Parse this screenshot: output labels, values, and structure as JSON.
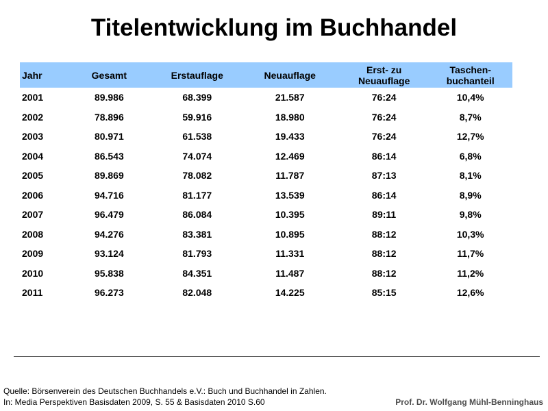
{
  "title": "Titelentwicklung im Buchhandel",
  "table": {
    "headers": {
      "jahr": "Jahr",
      "gesamt": "Gesamt",
      "erstauflage": "Erstauflage",
      "neuauflage": "Neuauflage",
      "ratio_line1": "Erst- zu",
      "ratio_line2": "Neuauflage",
      "tb_line1": "Taschen-",
      "tb_line2": "buchanteil"
    },
    "rows": [
      {
        "jahr": "2001",
        "gesamt": "89.986",
        "erstauflage": "68.399",
        "neuauflage": "21.587",
        "ratio": "76:24",
        "taschenbuch": "10,4%"
      },
      {
        "jahr": "2002",
        "gesamt": "78.896",
        "erstauflage": "59.916",
        "neuauflage": "18.980",
        "ratio": "76:24",
        "taschenbuch": "8,7%"
      },
      {
        "jahr": "2003",
        "gesamt": "80.971",
        "erstauflage": "61.538",
        "neuauflage": "19.433",
        "ratio": "76:24",
        "taschenbuch": "12,7%"
      },
      {
        "jahr": "2004",
        "gesamt": "86.543",
        "erstauflage": "74.074",
        "neuauflage": "12.469",
        "ratio": "86:14",
        "taschenbuch": "6,8%"
      },
      {
        "jahr": "2005",
        "gesamt": "89.869",
        "erstauflage": "78.082",
        "neuauflage": "11.787",
        "ratio": "87:13",
        "taschenbuch": "8,1%"
      },
      {
        "jahr": "2006",
        "gesamt": "94.716",
        "erstauflage": "81.177",
        "neuauflage": "13.539",
        "ratio": "86:14",
        "taschenbuch": "8,9%"
      },
      {
        "jahr": "2007",
        "gesamt": "96.479",
        "erstauflage": "86.084",
        "neuauflage": "10.395",
        "ratio": "89:11",
        "taschenbuch": "9,8%"
      },
      {
        "jahr": "2008",
        "gesamt": "94.276",
        "erstauflage": "83.381",
        "neuauflage": "10.895",
        "ratio": "88:12",
        "taschenbuch": "10,3%"
      },
      {
        "jahr": "2009",
        "gesamt": "93.124",
        "erstauflage": "81.793",
        "neuauflage": "11.331",
        "ratio": "88:12",
        "taschenbuch": "11,7%"
      },
      {
        "jahr": "2010",
        "gesamt": "95.838",
        "erstauflage": "84.351",
        "neuauflage": "11.487",
        "ratio": "88:12",
        "taschenbuch": "11,2%"
      },
      {
        "jahr": "2011",
        "gesamt": "96.273",
        "erstauflage": "82.048",
        "neuauflage": "14.225",
        "ratio": "85:15",
        "taschenbuch": "12,6%"
      }
    ]
  },
  "footer": {
    "source_line1": "Quelle: Börsenverein  des Deutschen Buchhandels e.V.: Buch und Buchhandel  in Zahlen.",
    "source_line2": "In: Media Perspektiven  Basisdaten 2009,  S. 55 & Basisdaten 2010 S.60",
    "author": "Prof. Dr. Wolfgang Mühl-Benninghaus"
  },
  "colors": {
    "header_background": "#99ccff",
    "author_text": "#4d4d4d"
  }
}
